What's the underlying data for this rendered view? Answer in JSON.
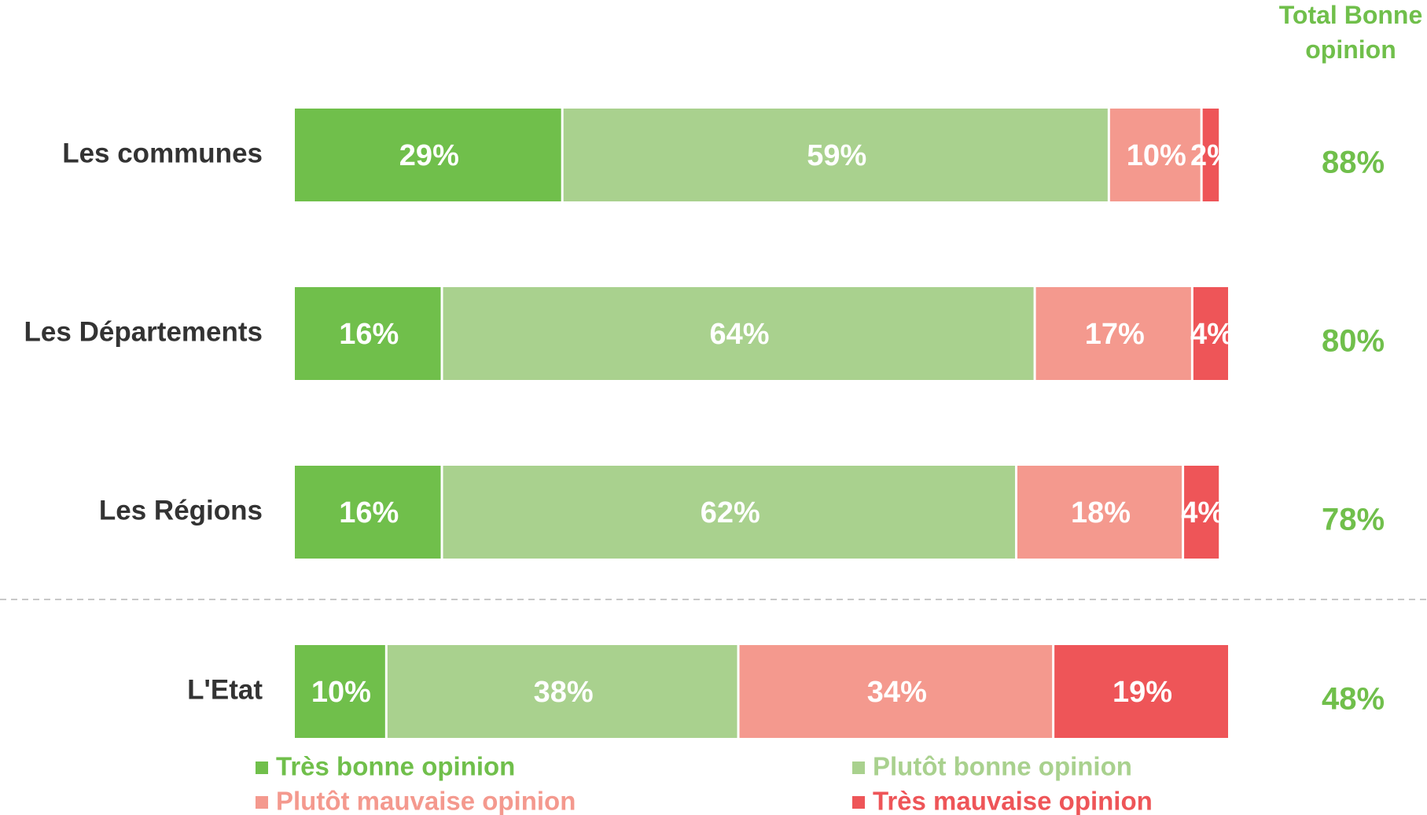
{
  "chart_data": {
    "type": "stacked-barh",
    "categories": [
      "Les communes",
      "Les Départements",
      "Les Régions",
      "L'Etat"
    ],
    "series": [
      {
        "name": "Très bonne opinion",
        "color": "#70bf4b",
        "values": [
          29,
          16,
          16,
          10
        ],
        "value_labels": [
          "29%",
          "16%",
          "16%",
          "10%"
        ]
      },
      {
        "name": "Plutôt bonne opinion",
        "color": "#a9d18e",
        "values": [
          59,
          64,
          62,
          38
        ],
        "value_labels": [
          "59%",
          "64%",
          "62%",
          "38%"
        ]
      },
      {
        "name": "Plutôt mauvaise opinion",
        "color": "#f4998e",
        "values": [
          10,
          17,
          18,
          34
        ],
        "value_labels": [
          "10%",
          "17%",
          "18%",
          "34%"
        ]
      },
      {
        "name": "Très mauvaise opinion",
        "color": "#ee5558",
        "values": [
          2,
          4,
          4,
          19
        ],
        "value_labels": [
          "2%",
          "4%",
          "4%",
          "19%"
        ]
      }
    ],
    "xlim": [
      0,
      101
    ],
    "total": {
      "title": "Total Bonne opinion",
      "color": "#70bf4b",
      "values": [
        88,
        80,
        78,
        48
      ],
      "value_labels": [
        "88%",
        "80%",
        "78%",
        "48%"
      ]
    },
    "legend": "bottom"
  }
}
